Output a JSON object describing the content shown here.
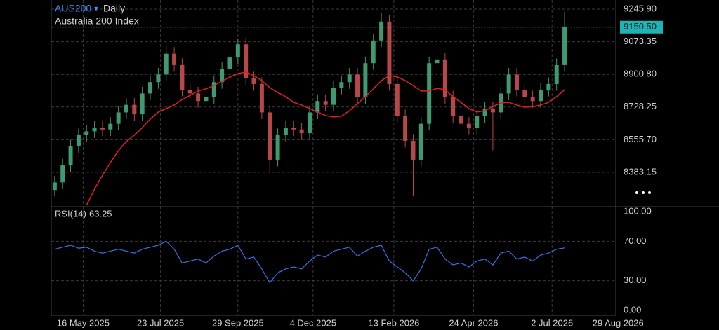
{
  "chart_data": {
    "type": "candlestick",
    "title": "AUS200",
    "title_marker": "▾",
    "interval": "Daily",
    "subtitle": "Australia 200 Index",
    "x": [
      "2025-04-21",
      "2025-04-28",
      "2025-05-05",
      "2025-05-12",
      "2025-05-19",
      "2025-05-26",
      "2025-06-02",
      "2025-06-09",
      "2025-06-16",
      "2025-06-23",
      "2025-06-30",
      "2025-07-07",
      "2025-07-14",
      "2025-07-21",
      "2025-07-28",
      "2025-08-04",
      "2025-08-11",
      "2025-08-18",
      "2025-08-25",
      "2025-09-01",
      "2025-09-08",
      "2025-09-15",
      "2025-09-22",
      "2025-09-29",
      "2025-10-06",
      "2025-10-13",
      "2025-10-20",
      "2025-10-27",
      "2025-11-03",
      "2025-11-10",
      "2025-11-17",
      "2025-11-24",
      "2025-12-01",
      "2025-12-08",
      "2025-12-15",
      "2025-12-22",
      "2025-12-29",
      "2026-01-05",
      "2026-01-12",
      "2026-01-19",
      "2026-01-26",
      "2026-02-02",
      "2026-02-09",
      "2026-02-16",
      "2026-02-23",
      "2026-03-02",
      "2026-03-09",
      "2026-03-16",
      "2026-03-23",
      "2026-03-30",
      "2026-04-06",
      "2026-04-13",
      "2026-04-20",
      "2026-04-27",
      "2026-05-04",
      "2026-05-11",
      "2026-05-18",
      "2026-05-25",
      "2026-06-01",
      "2026-06-08",
      "2026-06-15",
      "2026-06-22",
      "2026-06-29",
      "2026-07-06",
      "2026-07-13"
    ],
    "open": [
      8290,
      8330,
      8420,
      8520,
      8580,
      8600,
      8620,
      8610,
      8640,
      8700,
      8740,
      8690,
      8800,
      8860,
      8900,
      9010,
      8950,
      8820,
      8800,
      8760,
      8780,
      8860,
      8930,
      8990,
      9060,
      8880,
      8850,
      8700,
      8450,
      8580,
      8620,
      8610,
      8590,
      8700,
      8760,
      8740,
      8830,
      8860,
      8900,
      8780,
      8960,
      9080,
      9180,
      8850,
      8680,
      8550,
      8450,
      8640,
      8960,
      8980,
      8780,
      8680,
      8640,
      8620,
      8680,
      8720,
      8700,
      8800,
      8900,
      8820,
      8780,
      8760,
      8820,
      8850,
      8950
    ],
    "high": [
      8365,
      8455,
      8555,
      8615,
      8635,
      8655,
      8655,
      8675,
      8735,
      8775,
      8775,
      8835,
      8895,
      8935,
      9053,
      9045,
      8985,
      8855,
      8835,
      8815,
      8895,
      8965,
      9025,
      9090,
      9095,
      8915,
      8885,
      8735,
      8615,
      8655,
      8655,
      8645,
      8735,
      8795,
      8795,
      8865,
      8895,
      8935,
      8935,
      8995,
      9115,
      9225,
      9215,
      8885,
      8715,
      8585,
      8675,
      8995,
      9035,
      9015,
      8815,
      8715,
      8675,
      8715,
      8755,
      8755,
      8835,
      8935,
      8935,
      8855,
      8815,
      8855,
      8885,
      8985,
      9232
    ],
    "low": [
      8257,
      8295,
      8385,
      8485,
      8545,
      8565,
      8575,
      8575,
      8605,
      8665,
      8655,
      8655,
      8765,
      8825,
      8865,
      8915,
      8785,
      8765,
      8725,
      8725,
      8745,
      8825,
      8895,
      8955,
      8845,
      8815,
      8665,
      8387,
      8415,
      8545,
      8575,
      8555,
      8555,
      8665,
      8705,
      8705,
      8795,
      8825,
      8745,
      8745,
      8925,
      9045,
      8815,
      8645,
      8515,
      8257,
      8415,
      8605,
      8925,
      8745,
      8645,
      8605,
      8585,
      8585,
      8645,
      8500,
      8665,
      8765,
      8785,
      8745,
      8725,
      8725,
      8785,
      8815,
      8915
    ],
    "close": [
      8330,
      8420,
      8520,
      8580,
      8600,
      8620,
      8610,
      8640,
      8700,
      8740,
      8690,
      8800,
      8860,
      8900,
      9010,
      8950,
      8820,
      8800,
      8760,
      8780,
      8860,
      8930,
      8990,
      9060,
      8880,
      8850,
      8700,
      8450,
      8580,
      8620,
      8610,
      8590,
      8700,
      8760,
      8740,
      8830,
      8860,
      8900,
      8780,
      8960,
      9080,
      9180,
      8850,
      8680,
      8550,
      8450,
      8640,
      8960,
      8980,
      8780,
      8680,
      8640,
      8620,
      8680,
      8720,
      8700,
      8800,
      8900,
      8820,
      8780,
      8760,
      8820,
      8850,
      8950,
      9150.5
    ],
    "up_color": "#3f9a70",
    "down_color": "#b6484a",
    "series": [
      {
        "color": "#e3201c",
        "values": [
          null,
          null,
          null,
          null,
          8210,
          8294,
          8368,
          8435,
          8498,
          8546,
          8580,
          8620,
          8665,
          8702,
          8720,
          8739,
          8768,
          8790,
          8813,
          8824,
          8842,
          8865,
          8887,
          8905,
          8913,
          8894,
          8868,
          8831,
          8805,
          8783,
          8753,
          8739,
          8720,
          8702,
          8683,
          8676,
          8680,
          8709,
          8746,
          8783,
          8824,
          8868,
          8894,
          8887,
          8868,
          8842,
          8813,
          8813,
          8827,
          8820,
          8783,
          8753,
          8720,
          8702,
          8709,
          8731,
          8750,
          8753,
          8739,
          8727,
          8731,
          8739,
          8753,
          8783,
          8820
        ]
      }
    ],
    "last_price": {
      "value": 9150.5,
      "label": "9150.50"
    },
    "last_price_color": "#1fb3b3",
    "xlim": [
      "2025-04-18",
      "2026-08-27"
    ],
    "xticks": [
      {
        "value": "2025-05-16",
        "label": "16 May 2025"
      },
      {
        "value": "2025-07-23",
        "label": "23 Jul 2025"
      },
      {
        "value": "2025-09-29",
        "label": "29 Sep 2025"
      },
      {
        "value": "2025-12-04",
        "label": "4 Dec 2025"
      },
      {
        "value": "2026-02-13",
        "label": "13 Feb 2026"
      },
      {
        "value": "2026-04-24",
        "label": "24 Apr 2026"
      },
      {
        "value": "2026-07-02",
        "label": "2 Jul 2026"
      },
      {
        "value": "2026-08-29",
        "label": "29 Aug 2026"
      }
    ],
    "ylim": [
      8201.7,
      9294.0
    ],
    "yticks": [
      {
        "value": 8383.15,
        "label": "8383.15"
      },
      {
        "value": 8555.7,
        "label": "8555.70"
      },
      {
        "value": 8728.25,
        "label": "8728.25"
      },
      {
        "value": 8900.8,
        "label": "8900.80"
      },
      {
        "value": 9073.35,
        "label": "9073.35"
      },
      {
        "value": 9245.9,
        "label": "9245.90"
      }
    ],
    "grid": true,
    "rsi": {
      "label": "RSI(14)",
      "color": "#3274e6",
      "ylim": [
        -5,
        105
      ],
      "yticks": [
        {
          "value": 0,
          "label": "0.00"
        },
        {
          "value": 30,
          "label": "30.00"
        },
        {
          "value": 70,
          "label": "70.00"
        },
        {
          "value": 100,
          "label": "100.00"
        }
      ],
      "values": [
        62,
        64,
        66,
        63,
        64,
        60,
        58,
        60,
        62,
        60,
        58,
        62,
        64,
        66,
        70,
        62,
        48,
        50,
        52,
        48,
        55,
        60,
        62,
        66,
        52,
        54,
        42,
        28,
        38,
        42,
        44,
        42,
        50,
        56,
        54,
        60,
        62,
        64,
        55,
        60,
        64,
        66,
        50,
        44,
        38,
        30,
        42,
        62,
        64,
        52,
        46,
        48,
        44,
        50,
        52,
        46,
        58,
        60,
        52,
        54,
        50,
        56,
        58,
        62,
        63.25
      ]
    }
  }
}
